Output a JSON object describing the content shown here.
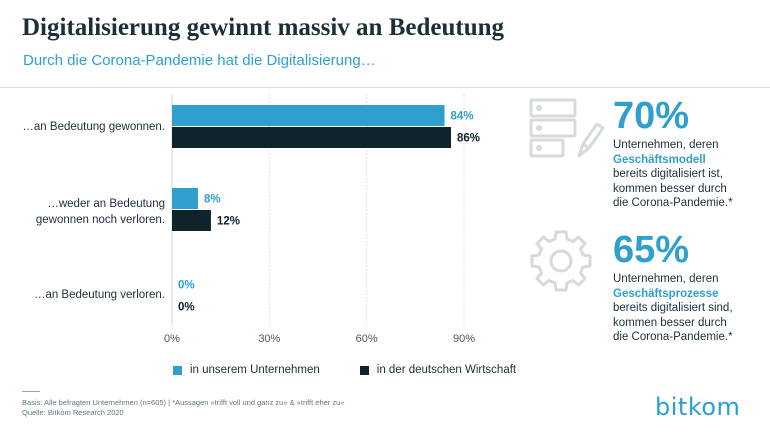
{
  "title": "Digitalisierung gewinnt massiv an Bedeutung",
  "subtitle": "Durch die Corona-Pandemie hat die Digitalisierung…",
  "colors": {
    "accent": "#2fa0cd",
    "dark": "#0f232a",
    "text": "#1c2f37"
  },
  "chart_data": {
    "type": "bar",
    "orientation": "horizontal",
    "categories": [
      "…an Bedeutung gewonnen.",
      "…weder an Bedeutung gewonnen noch verloren.",
      "…an Bedeutung verloren."
    ],
    "series": [
      {
        "name": "in unserem Unternehmen",
        "values": [
          84,
          8,
          0
        ],
        "labels": [
          "84%",
          "8%",
          "0%"
        ],
        "color": "#2fa0cd"
      },
      {
        "name": "in der deutschen Wirtschaft",
        "values": [
          86,
          12,
          0
        ],
        "labels": [
          "86%",
          "12%",
          "0%"
        ],
        "color": "#0f232a"
      }
    ],
    "xlim": [
      0,
      90
    ],
    "xticks": [
      "0%",
      "30%",
      "60%",
      "90%"
    ],
    "xtick_values": [
      0,
      30,
      60,
      90
    ],
    "grid": true,
    "legend": "bottom"
  },
  "categories_display": {
    "cat0": [
      "…an Bedeutung gewonnen."
    ],
    "cat1": [
      "…weder an Bedeutung",
      "gewonnen noch verloren."
    ],
    "cat2": [
      "…an Bedeutung verloren."
    ]
  },
  "kpis": [
    {
      "value": "70%",
      "line1": "Unternehmen, deren",
      "highlight": "Geschäftsmodell",
      "line3": "bereits digitalisiert ist,",
      "line4": "kommen besser durch",
      "line5": "die Corona-Pandemie.*",
      "icon": "server-pencil-icon"
    },
    {
      "value": "65%",
      "line1": "Unternehmen, deren",
      "highlight": "Geschäftsprozesse",
      "line3": "bereits digitalisiert sind,",
      "line4": "kommen besser durch",
      "line5": "die Corona-Pandemie.*",
      "icon": "gear-icon"
    }
  ],
  "footnote": {
    "basis": "Basis: Alle befragten Unternehmen (n=605) | *Aussagen »trifft voll und ganz zu« & »trifft eher zu«",
    "source": "Quelle: Bitkom Research 2020"
  },
  "logo": "bitkom"
}
